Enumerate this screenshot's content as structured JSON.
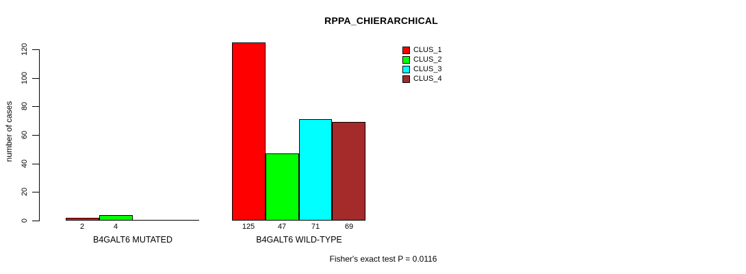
{
  "chart_data": {
    "type": "bar",
    "title": "RPPA_CHIERARCHICAL",
    "ylabel": "number of cases",
    "xlabel": "",
    "ylim": [
      0,
      125
    ],
    "yticks": [
      0,
      20,
      40,
      60,
      80,
      100,
      120
    ],
    "grid": false,
    "legend_position": "top-right",
    "legend": [
      {
        "label": "CLUS_1",
        "color": "#ff0000"
      },
      {
        "label": "CLUS_2",
        "color": "#00ff00"
      },
      {
        "label": "CLUS_3",
        "color": "#00ffff"
      },
      {
        "label": "CLUS_4",
        "color": "#a52a2a"
      }
    ],
    "categories": [
      "B4GALT6 MUTATED",
      "B4GALT6 WILD-TYPE"
    ],
    "series": [
      {
        "name": "CLUS_1",
        "values": [
          2,
          125
        ]
      },
      {
        "name": "CLUS_2",
        "values": [
          4,
          47
        ]
      },
      {
        "name": "CLUS_3",
        "values": [
          0,
          71
        ]
      },
      {
        "name": "CLUS_4",
        "values": [
          0,
          69
        ]
      }
    ],
    "bar_value_labels": [
      [
        "2",
        "4",
        "",
        ""
      ],
      [
        "125",
        "47",
        "71",
        "69"
      ]
    ],
    "annotation": "Fisher's exact test P = 0.0116"
  }
}
